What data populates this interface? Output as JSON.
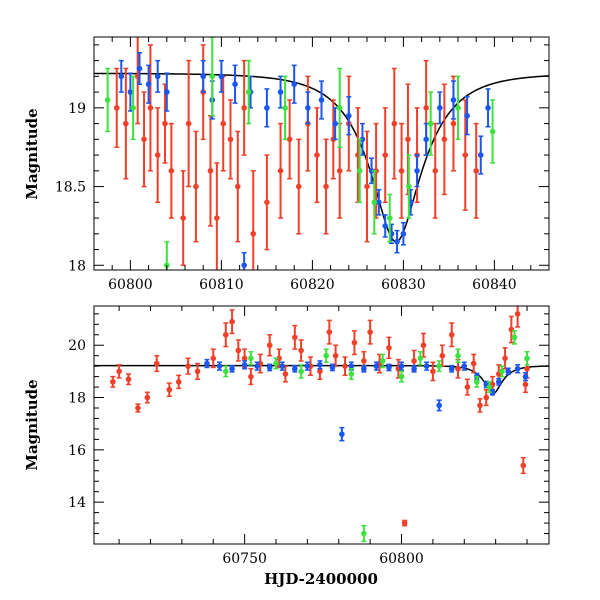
{
  "chart_data": [
    {
      "type": "scatter",
      "title": "",
      "xlabel": "",
      "ylabel": "Magnitude",
      "xlim": [
        60796,
        60846
      ],
      "ylim": [
        19.45,
        17.97
      ],
      "y_inverted": true,
      "xticks": [
        60800,
        60810,
        60820,
        60830,
        60840
      ],
      "yticks": [
        18,
        18.5,
        19
      ],
      "ytick_labels": [
        "18",
        "18.5",
        "19"
      ],
      "grid": false,
      "legend": "none",
      "colors": {
        "red": "#f0402a",
        "green": "#3ee23e",
        "blue": "#1a56f0",
        "model": "#000000"
      },
      "model_curve": {
        "baseline": 19.22,
        "peak_mag": 18.15,
        "t0": 60829.2,
        "tE": 5.5
      },
      "series": [
        {
          "color_key": "red",
          "points": [
            [
              60798.5,
              19.0,
              0.25
            ],
            [
              60799.5,
              18.9,
              0.35
            ],
            [
              60800.8,
              19.2,
              0.3
            ],
            [
              60801.5,
              18.8,
              0.3
            ],
            [
              60802.2,
              19.0,
              0.4
            ],
            [
              60803.0,
              18.7,
              0.3
            ],
            [
              60803.8,
              18.9,
              0.25
            ],
            [
              60804.5,
              18.6,
              0.3
            ],
            [
              60805.8,
              18.3,
              0.3
            ],
            [
              60806.4,
              18.9,
              0.4
            ],
            [
              60807.2,
              18.5,
              0.35
            ],
            [
              60808.0,
              19.1,
              0.3
            ],
            [
              60808.8,
              18.6,
              0.35
            ],
            [
              60809.5,
              18.3,
              0.35
            ],
            [
              60810.2,
              18.9,
              0.3
            ],
            [
              60811.0,
              18.8,
              0.25
            ],
            [
              60811.8,
              18.5,
              0.35
            ],
            [
              60812.5,
              19.0,
              0.3
            ],
            [
              60813.5,
              18.2,
              0.4
            ],
            [
              60815.0,
              18.4,
              0.3
            ],
            [
              60816.5,
              18.6,
              0.3
            ],
            [
              60817.5,
              18.8,
              0.25
            ],
            [
              60818.5,
              18.5,
              0.3
            ],
            [
              60819.5,
              18.9,
              0.3
            ],
            [
              60820.5,
              18.7,
              0.3
            ],
            [
              60821.5,
              18.5,
              0.3
            ],
            [
              60822.3,
              18.8,
              0.25
            ],
            [
              60823.0,
              18.6,
              0.3
            ],
            [
              60824.0,
              18.9,
              0.3
            ],
            [
              60825.0,
              18.7,
              0.3
            ],
            [
              60826.0,
              18.5,
              0.35
            ],
            [
              60827.0,
              18.6,
              0.3
            ],
            [
              60828.0,
              18.7,
              0.3
            ],
            [
              60829.0,
              18.9,
              0.35
            ],
            [
              60829.8,
              18.6,
              0.3
            ],
            [
              60830.5,
              18.8,
              0.35
            ],
            [
              60831.5,
              18.7,
              0.3
            ],
            [
              60832.5,
              19.0,
              0.3
            ],
            [
              60833.5,
              18.6,
              0.3
            ],
            [
              60834.5,
              18.8,
              0.35
            ],
            [
              60835.5,
              18.9,
              0.3
            ],
            [
              60836.8,
              18.7,
              0.35
            ],
            [
              60838.0,
              18.6,
              0.3
            ]
          ]
        },
        {
          "color_key": "blue",
          "points": [
            [
              60799.0,
              19.2,
              0.1
            ],
            [
              60800.0,
              19.1,
              0.12
            ],
            [
              60801.0,
              19.25,
              0.1
            ],
            [
              60802.0,
              19.15,
              0.12
            ],
            [
              60803.0,
              19.2,
              0.1
            ],
            [
              60804.0,
              19.1,
              0.12
            ],
            [
              60808.0,
              19.2,
              0.1
            ],
            [
              60809.0,
              19.05,
              0.12
            ],
            [
              60810.0,
              19.2,
              0.1
            ],
            [
              60811.5,
              19.15,
              0.12
            ],
            [
              60812.5,
              18.0,
              0.08
            ],
            [
              60813.2,
              19.1,
              0.1
            ],
            [
              60815.0,
              19.0,
              0.12
            ],
            [
              60816.5,
              19.1,
              0.1
            ],
            [
              60818.0,
              19.15,
              0.12
            ],
            [
              60819.5,
              19.0,
              0.1
            ],
            [
              60821.0,
              19.05,
              0.12
            ],
            [
              60822.5,
              18.9,
              0.1
            ],
            [
              60824.0,
              18.95,
              0.12
            ],
            [
              60825.5,
              18.8,
              0.1
            ],
            [
              60826.5,
              18.6,
              0.08
            ],
            [
              60827.3,
              18.4,
              0.08
            ],
            [
              60828.0,
              18.25,
              0.07
            ],
            [
              60828.7,
              18.2,
              0.06
            ],
            [
              60829.3,
              18.15,
              0.07
            ],
            [
              60830.0,
              18.2,
              0.07
            ],
            [
              60830.8,
              18.4,
              0.08
            ],
            [
              60831.5,
              18.6,
              0.1
            ],
            [
              60832.5,
              18.8,
              0.1
            ],
            [
              60834.0,
              19.0,
              0.1
            ],
            [
              60835.5,
              19.05,
              0.12
            ],
            [
              60837.0,
              18.95,
              0.12
            ],
            [
              60838.5,
              18.7,
              0.12
            ],
            [
              60839.3,
              19.0,
              0.12
            ]
          ]
        },
        {
          "color_key": "green",
          "points": [
            [
              60797.5,
              19.05,
              0.2
            ],
            [
              60800.3,
              19.0,
              0.2
            ],
            [
              60804.0,
              18.0,
              0.15
            ],
            [
              60809.0,
              19.2,
              0.25
            ],
            [
              60813.0,
              19.1,
              0.2
            ],
            [
              60817.0,
              19.0,
              0.2
            ],
            [
              60823.0,
              19.0,
              0.25
            ],
            [
              60825.2,
              18.6,
              0.2
            ],
            [
              60826.8,
              18.4,
              0.2
            ],
            [
              60828.5,
              18.3,
              0.15
            ],
            [
              60830.6,
              18.5,
              0.2
            ],
            [
              60833.0,
              18.9,
              0.2
            ],
            [
              60836.0,
              19.0,
              0.2
            ],
            [
              60839.8,
              18.85,
              0.2
            ]
          ]
        }
      ]
    },
    {
      "type": "scatter",
      "title": "",
      "xlabel": "HJD-2400000",
      "ylabel": "Magnitude",
      "xlim": [
        60702,
        60847
      ],
      "ylim": [
        21.5,
        12.4
      ],
      "y_inverted": true,
      "xticks": [
        60750,
        60800
      ],
      "yticks": [
        14,
        16,
        18,
        20
      ],
      "grid": false,
      "legend": "none",
      "colors": {
        "red": "#f0402a",
        "green": "#3ee23e",
        "blue": "#1a56f0",
        "model": "#000000"
      },
      "model_curve": {
        "baseline": 19.22,
        "peak_mag": 18.15,
        "t0": 60829.2,
        "tE": 5.5
      },
      "series": [
        {
          "color_key": "red",
          "points": [
            [
              60708,
              18.6,
              0.2
            ],
            [
              60710,
              19.0,
              0.25
            ],
            [
              60713,
              18.7,
              0.2
            ],
            [
              60716,
              17.6,
              0.15
            ],
            [
              60719,
              18.0,
              0.2
            ],
            [
              60722,
              19.3,
              0.3
            ],
            [
              60726,
              18.3,
              0.25
            ],
            [
              60729,
              18.6,
              0.25
            ],
            [
              60732,
              19.2,
              0.3
            ],
            [
              60735,
              19.0,
              0.3
            ],
            [
              60740,
              19.5,
              0.35
            ],
            [
              60744,
              20.4,
              0.45
            ],
            [
              60746,
              20.9,
              0.45
            ],
            [
              60748,
              19.8,
              0.4
            ],
            [
              60750,
              19.5,
              0.35
            ],
            [
              60752,
              18.8,
              0.3
            ],
            [
              60755,
              19.3,
              0.35
            ],
            [
              60758,
              20.0,
              0.4
            ],
            [
              60761,
              19.5,
              0.35
            ],
            [
              60763,
              18.9,
              0.3
            ],
            [
              60766,
              20.3,
              0.45
            ],
            [
              60768,
              19.8,
              0.4
            ],
            [
              60771,
              19.2,
              0.35
            ],
            [
              60774,
              19.0,
              0.3
            ],
            [
              60777,
              20.5,
              0.45
            ],
            [
              60779,
              19.6,
              0.4
            ],
            [
              60782,
              19.2,
              0.35
            ],
            [
              60785,
              20.1,
              0.45
            ],
            [
              60788,
              19.4,
              0.35
            ],
            [
              60790,
              20.5,
              0.45
            ],
            [
              60793,
              19.3,
              0.35
            ],
            [
              60796,
              19.9,
              0.4
            ],
            [
              60799,
              19.1,
              0.35
            ],
            [
              60801,
              13.2,
              0.1
            ],
            [
              60804,
              19.4,
              0.4
            ],
            [
              60807,
              20.0,
              0.45
            ],
            [
              60810,
              19.0,
              0.35
            ],
            [
              60813,
              19.6,
              0.4
            ],
            [
              60816,
              20.4,
              0.45
            ],
            [
              60818,
              19.1,
              0.35
            ],
            [
              60821,
              18.4,
              0.3
            ],
            [
              60823,
              19.3,
              0.35
            ],
            [
              60825,
              17.7,
              0.25
            ],
            [
              60827,
              18.0,
              0.3
            ],
            [
              60829,
              18.5,
              0.3
            ],
            [
              60831,
              18.9,
              0.35
            ],
            [
              60833,
              19.5,
              0.4
            ],
            [
              60835,
              20.6,
              0.5
            ],
            [
              60837,
              21.2,
              0.5
            ],
            [
              60838.8,
              15.4,
              0.3
            ],
            [
              60839.5,
              18.5,
              0.3
            ],
            [
              60840,
              19.1,
              0.35
            ]
          ]
        },
        {
          "color_key": "blue",
          "points": [
            [
              60738,
              19.3,
              0.15
            ],
            [
              60742,
              19.2,
              0.15
            ],
            [
              60746,
              19.1,
              0.12
            ],
            [
              60750,
              19.25,
              0.15
            ],
            [
              60754,
              19.2,
              0.15
            ],
            [
              60758,
              19.15,
              0.12
            ],
            [
              60762,
              19.2,
              0.15
            ],
            [
              60766,
              19.1,
              0.12
            ],
            [
              60770,
              19.2,
              0.15
            ],
            [
              60774,
              19.25,
              0.15
            ],
            [
              60778,
              19.15,
              0.12
            ],
            [
              60781,
              16.6,
              0.25
            ],
            [
              60784,
              19.2,
              0.15
            ],
            [
              60788,
              19.1,
              0.12
            ],
            [
              60792,
              19.2,
              0.15
            ],
            [
              60796,
              19.15,
              0.12
            ],
            [
              60800,
              19.2,
              0.15
            ],
            [
              60804,
              19.1,
              0.12
            ],
            [
              60808,
              19.2,
              0.15
            ],
            [
              60812,
              17.7,
              0.2
            ],
            [
              60816,
              19.1,
              0.12
            ],
            [
              60820,
              19.2,
              0.15
            ],
            [
              60824,
              18.8,
              0.12
            ],
            [
              60827,
              18.5,
              0.12
            ],
            [
              60829,
              18.2,
              0.1
            ],
            [
              60831,
              18.6,
              0.12
            ],
            [
              60834,
              19.0,
              0.12
            ],
            [
              60837,
              19.1,
              0.15
            ],
            [
              60839.5,
              18.8,
              0.15
            ]
          ]
        },
        {
          "color_key": "green",
          "points": [
            [
              60744,
              19.0,
              0.2
            ],
            [
              60752,
              19.5,
              0.25
            ],
            [
              60760,
              19.3,
              0.2
            ],
            [
              60768,
              19.0,
              0.25
            ],
            [
              60776,
              19.6,
              0.25
            ],
            [
              60784,
              18.9,
              0.2
            ],
            [
              60788,
              12.8,
              0.3
            ],
            [
              60794,
              19.4,
              0.25
            ],
            [
              60800,
              18.8,
              0.2
            ],
            [
              60806,
              19.5,
              0.25
            ],
            [
              60812,
              19.2,
              0.2
            ],
            [
              60818,
              19.6,
              0.25
            ],
            [
              60824,
              18.6,
              0.2
            ],
            [
              60828,
              18.4,
              0.2
            ],
            [
              60832,
              19.0,
              0.2
            ],
            [
              60836,
              20.3,
              0.25
            ],
            [
              60840,
              19.5,
              0.25
            ]
          ]
        }
      ]
    }
  ]
}
